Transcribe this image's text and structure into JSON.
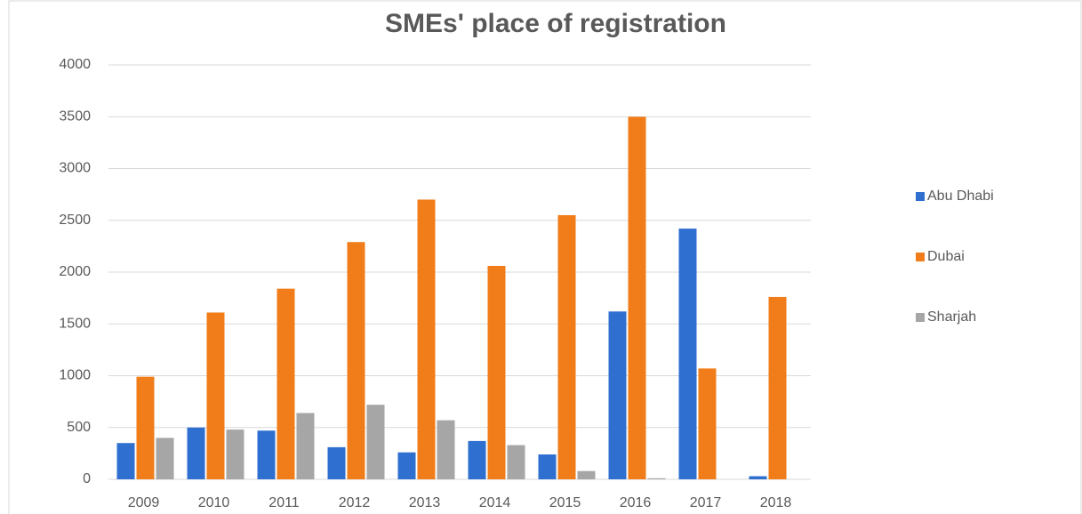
{
  "chart_data": {
    "type": "bar",
    "title": "SMEs' place of registration",
    "categories": [
      "2009",
      "2010",
      "2011",
      "2012",
      "2013",
      "2014",
      "2015",
      "2016",
      "2017",
      "2018"
    ],
    "series": [
      {
        "name": "Abu Dhabi",
        "color": "#2e6fd0",
        "values": [
          350,
          500,
          470,
          310,
          260,
          370,
          240,
          1620,
          2420,
          30
        ]
      },
      {
        "name": "Dubai",
        "color": "#f07d1a",
        "values": [
          990,
          1610,
          1840,
          2290,
          2700,
          2060,
          2550,
          3500,
          1070,
          1760
        ]
      },
      {
        "name": "Sharjah",
        "color": "#a6a6a6",
        "values": [
          400,
          480,
          640,
          720,
          570,
          330,
          80,
          10,
          0,
          0
        ]
      }
    ],
    "ylim": [
      0,
      4000
    ],
    "yticks": [
      0,
      500,
      1000,
      1500,
      2000,
      2500,
      3000,
      3500,
      4000
    ],
    "grid": true,
    "legend": "right"
  }
}
